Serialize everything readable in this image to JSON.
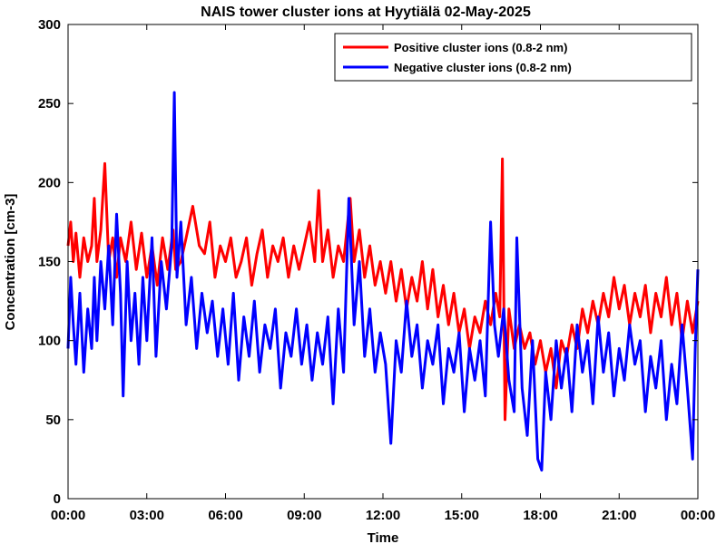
{
  "chart_data": {
    "type": "line",
    "title": "NAIS tower cluster ions at Hyytiälä 02-May-2025",
    "xlabel": "Time",
    "ylabel": "Concentration [cm-3]",
    "xlim_hours": [
      0,
      24
    ],
    "ylim": [
      0,
      300
    ],
    "x_ticks": [
      "00:00",
      "03:00",
      "06:00",
      "09:00",
      "12:00",
      "15:00",
      "18:00",
      "21:00",
      "00:00"
    ],
    "y_ticks": [
      "0",
      "50",
      "100",
      "150",
      "200",
      "250",
      "300"
    ],
    "grid": false,
    "legend_position": "top-right",
    "series": [
      {
        "name": "Positive cluster ions (0.8-2 nm)",
        "color": "#ff0000",
        "points": [
          [
            0.0,
            160
          ],
          [
            0.1,
            175
          ],
          [
            0.2,
            150
          ],
          [
            0.3,
            168
          ],
          [
            0.45,
            140
          ],
          [
            0.6,
            165
          ],
          [
            0.75,
            150
          ],
          [
            0.9,
            160
          ],
          [
            1.0,
            190
          ],
          [
            1.1,
            150
          ],
          [
            1.25,
            170
          ],
          [
            1.4,
            212
          ],
          [
            1.55,
            150
          ],
          [
            1.7,
            165
          ],
          [
            1.85,
            140
          ],
          [
            2.0,
            165
          ],
          [
            2.2,
            150
          ],
          [
            2.4,
            175
          ],
          [
            2.6,
            145
          ],
          [
            2.8,
            168
          ],
          [
            3.0,
            140
          ],
          [
            3.2,
            160
          ],
          [
            3.4,
            135
          ],
          [
            3.6,
            165
          ],
          [
            3.8,
            145
          ],
          [
            4.0,
            170
          ],
          [
            4.1,
            145
          ],
          [
            4.3,
            150
          ],
          [
            4.5,
            165
          ],
          [
            4.75,
            185
          ],
          [
            5.0,
            160
          ],
          [
            5.2,
            155
          ],
          [
            5.4,
            175
          ],
          [
            5.6,
            140
          ],
          [
            5.8,
            160
          ],
          [
            6.0,
            150
          ],
          [
            6.2,
            165
          ],
          [
            6.4,
            140
          ],
          [
            6.6,
            150
          ],
          [
            6.8,
            165
          ],
          [
            7.0,
            135
          ],
          [
            7.2,
            155
          ],
          [
            7.4,
            170
          ],
          [
            7.6,
            140
          ],
          [
            7.8,
            160
          ],
          [
            8.0,
            150
          ],
          [
            8.2,
            165
          ],
          [
            8.4,
            140
          ],
          [
            8.6,
            160
          ],
          [
            8.8,
            145
          ],
          [
            9.0,
            160
          ],
          [
            9.2,
            175
          ],
          [
            9.4,
            150
          ],
          [
            9.55,
            195
          ],
          [
            9.7,
            150
          ],
          [
            9.9,
            170
          ],
          [
            10.1,
            140
          ],
          [
            10.3,
            160
          ],
          [
            10.5,
            150
          ],
          [
            10.75,
            190
          ],
          [
            10.9,
            150
          ],
          [
            11.1,
            170
          ],
          [
            11.3,
            140
          ],
          [
            11.5,
            160
          ],
          [
            11.7,
            135
          ],
          [
            11.9,
            150
          ],
          [
            12.1,
            130
          ],
          [
            12.3,
            150
          ],
          [
            12.5,
            125
          ],
          [
            12.7,
            145
          ],
          [
            12.9,
            120
          ],
          [
            13.1,
            140
          ],
          [
            13.3,
            125
          ],
          [
            13.5,
            150
          ],
          [
            13.7,
            120
          ],
          [
            13.9,
            145
          ],
          [
            14.1,
            115
          ],
          [
            14.3,
            135
          ],
          [
            14.5,
            110
          ],
          [
            14.7,
            130
          ],
          [
            14.9,
            105
          ],
          [
            15.1,
            120
          ],
          [
            15.3,
            95
          ],
          [
            15.5,
            115
          ],
          [
            15.7,
            105
          ],
          [
            15.9,
            125
          ],
          [
            16.1,
            110
          ],
          [
            16.3,
            130
          ],
          [
            16.45,
            115
          ],
          [
            16.55,
            215
          ],
          [
            16.65,
            50
          ],
          [
            16.8,
            120
          ],
          [
            17.0,
            95
          ],
          [
            17.2,
            110
          ],
          [
            17.4,
            95
          ],
          [
            17.6,
            105
          ],
          [
            17.8,
            85
          ],
          [
            18.0,
            100
          ],
          [
            18.2,
            80
          ],
          [
            18.4,
            95
          ],
          [
            18.6,
            70
          ],
          [
            18.8,
            100
          ],
          [
            19.0,
            90
          ],
          [
            19.2,
            110
          ],
          [
            19.4,
            95
          ],
          [
            19.6,
            120
          ],
          [
            19.8,
            105
          ],
          [
            20.0,
            125
          ],
          [
            20.2,
            110
          ],
          [
            20.4,
            130
          ],
          [
            20.6,
            115
          ],
          [
            20.8,
            140
          ],
          [
            21.0,
            120
          ],
          [
            21.2,
            135
          ],
          [
            21.4,
            110
          ],
          [
            21.6,
            130
          ],
          [
            21.8,
            115
          ],
          [
            22.0,
            135
          ],
          [
            22.2,
            105
          ],
          [
            22.4,
            130
          ],
          [
            22.6,
            115
          ],
          [
            22.8,
            140
          ],
          [
            23.0,
            110
          ],
          [
            23.2,
            130
          ],
          [
            23.4,
            100
          ],
          [
            23.6,
            125
          ],
          [
            23.8,
            105
          ],
          [
            24.0,
            125
          ]
        ]
      },
      {
        "name": "Negative cluster ions (0.8-2 nm)",
        "color": "#0000ff",
        "points": [
          [
            0.0,
            95
          ],
          [
            0.1,
            140
          ],
          [
            0.2,
            110
          ],
          [
            0.3,
            85
          ],
          [
            0.45,
            130
          ],
          [
            0.6,
            80
          ],
          [
            0.75,
            120
          ],
          [
            0.9,
            95
          ],
          [
            1.0,
            140
          ],
          [
            1.1,
            100
          ],
          [
            1.25,
            150
          ],
          [
            1.4,
            120
          ],
          [
            1.55,
            160
          ],
          [
            1.7,
            110
          ],
          [
            1.85,
            180
          ],
          [
            2.0,
            130
          ],
          [
            2.1,
            65
          ],
          [
            2.25,
            150
          ],
          [
            2.4,
            100
          ],
          [
            2.55,
            130
          ],
          [
            2.7,
            85
          ],
          [
            2.85,
            140
          ],
          [
            3.0,
            100
          ],
          [
            3.2,
            165
          ],
          [
            3.35,
            90
          ],
          [
            3.55,
            150
          ],
          [
            3.75,
            120
          ],
          [
            3.95,
            160
          ],
          [
            4.05,
            257
          ],
          [
            4.15,
            140
          ],
          [
            4.3,
            175
          ],
          [
            4.5,
            110
          ],
          [
            4.7,
            140
          ],
          [
            4.9,
            95
          ],
          [
            5.1,
            130
          ],
          [
            5.3,
            105
          ],
          [
            5.5,
            125
          ],
          [
            5.7,
            90
          ],
          [
            5.9,
            120
          ],
          [
            6.1,
            85
          ],
          [
            6.3,
            130
          ],
          [
            6.5,
            75
          ],
          [
            6.7,
            115
          ],
          [
            6.9,
            90
          ],
          [
            7.1,
            125
          ],
          [
            7.3,
            80
          ],
          [
            7.5,
            110
          ],
          [
            7.7,
            95
          ],
          [
            7.9,
            120
          ],
          [
            8.1,
            70
          ],
          [
            8.3,
            105
          ],
          [
            8.5,
            90
          ],
          [
            8.7,
            120
          ],
          [
            8.9,
            85
          ],
          [
            9.1,
            110
          ],
          [
            9.3,
            75
          ],
          [
            9.5,
            105
          ],
          [
            9.7,
            85
          ],
          [
            9.9,
            115
          ],
          [
            10.1,
            60
          ],
          [
            10.3,
            120
          ],
          [
            10.5,
            80
          ],
          [
            10.7,
            190
          ],
          [
            10.9,
            110
          ],
          [
            11.1,
            150
          ],
          [
            11.3,
            90
          ],
          [
            11.5,
            120
          ],
          [
            11.7,
            80
          ],
          [
            11.9,
            105
          ],
          [
            12.1,
            85
          ],
          [
            12.3,
            35
          ],
          [
            12.5,
            100
          ],
          [
            12.7,
            80
          ],
          [
            12.9,
            125
          ],
          [
            13.1,
            90
          ],
          [
            13.3,
            110
          ],
          [
            13.5,
            70
          ],
          [
            13.7,
            100
          ],
          [
            13.9,
            85
          ],
          [
            14.1,
            110
          ],
          [
            14.3,
            60
          ],
          [
            14.5,
            95
          ],
          [
            14.7,
            80
          ],
          [
            14.9,
            105
          ],
          [
            15.1,
            55
          ],
          [
            15.3,
            95
          ],
          [
            15.5,
            75
          ],
          [
            15.7,
            100
          ],
          [
            15.9,
            65
          ],
          [
            16.1,
            175
          ],
          [
            16.25,
            110
          ],
          [
            16.4,
            90
          ],
          [
            16.6,
            120
          ],
          [
            16.8,
            75
          ],
          [
            17.0,
            55
          ],
          [
            17.1,
            165
          ],
          [
            17.3,
            70
          ],
          [
            17.5,
            40
          ],
          [
            17.7,
            100
          ],
          [
            17.9,
            25
          ],
          [
            18.05,
            18
          ],
          [
            18.2,
            80
          ],
          [
            18.4,
            50
          ],
          [
            18.6,
            100
          ],
          [
            18.8,
            70
          ],
          [
            19.0,
            95
          ],
          [
            19.2,
            55
          ],
          [
            19.4,
            110
          ],
          [
            19.6,
            80
          ],
          [
            19.8,
            100
          ],
          [
            20.0,
            60
          ],
          [
            20.2,
            115
          ],
          [
            20.4,
            80
          ],
          [
            20.6,
            105
          ],
          [
            20.8,
            65
          ],
          [
            21.0,
            95
          ],
          [
            21.2,
            75
          ],
          [
            21.4,
            110
          ],
          [
            21.6,
            85
          ],
          [
            21.8,
            100
          ],
          [
            22.0,
            55
          ],
          [
            22.2,
            90
          ],
          [
            22.4,
            70
          ],
          [
            22.6,
            100
          ],
          [
            22.8,
            50
          ],
          [
            23.0,
            85
          ],
          [
            23.2,
            60
          ],
          [
            23.4,
            110
          ],
          [
            23.6,
            70
          ],
          [
            23.8,
            25
          ],
          [
            23.9,
            95
          ],
          [
            24.0,
            145
          ]
        ]
      }
    ]
  }
}
